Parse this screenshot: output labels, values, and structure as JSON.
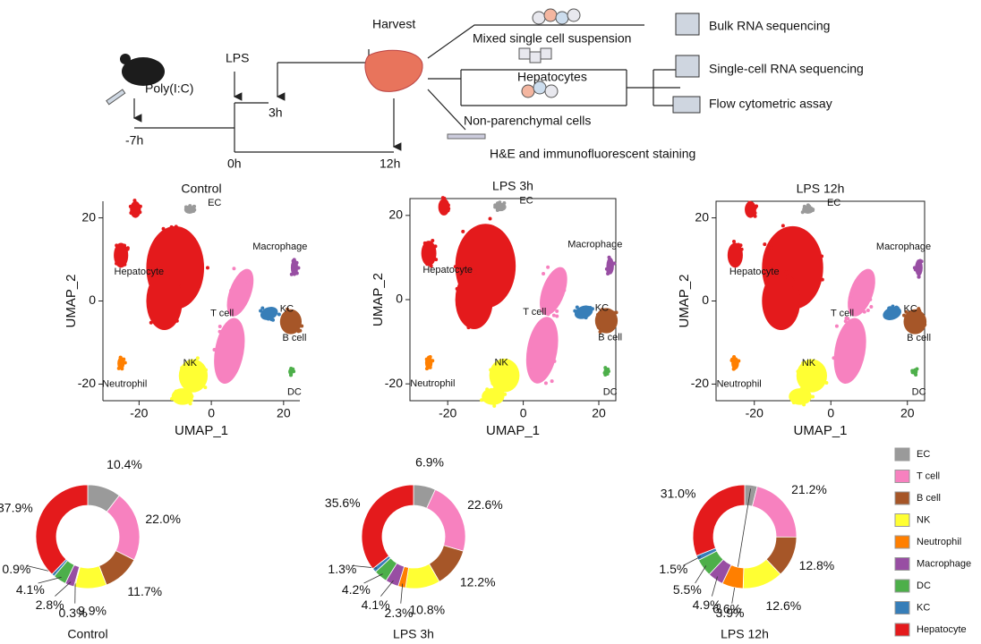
{
  "schematic": {
    "lps": "LPS",
    "polyic": "Poly(I:C)",
    "t_minus7": "-7h",
    "t0": "0h",
    "t3": "3h",
    "t12": "12h",
    "harvest": "Harvest",
    "mixed": "Mixed single cell suspension",
    "hepatocytes": "Hepatocytes",
    "npc": "Non-parenchymal cells",
    "staining": "H&E and immunofluorescent staining",
    "bulk": "Bulk RNA sequencing",
    "scrna": "Single-cell RNA sequencing",
    "flow": "Flow cytometric assay"
  },
  "cell_types": [
    {
      "name": "EC",
      "color": "#9a9a9a"
    },
    {
      "name": "T cell",
      "color": "#f781bf"
    },
    {
      "name": "B cell",
      "color": "#a65628"
    },
    {
      "name": "NK",
      "color": "#ffff33"
    },
    {
      "name": "Neutrophil",
      "color": "#ff7f00"
    },
    {
      "name": "Macrophage",
      "color": "#984ea3"
    },
    {
      "name": "DC",
      "color": "#4daf4a"
    },
    {
      "name": "KC",
      "color": "#377eb8"
    },
    {
      "name": "Hepatocyte",
      "color": "#e41a1c"
    }
  ],
  "umaps": [
    {
      "title": "Control",
      "xlabel": "UMAP_1",
      "ylabel": "UMAP_2",
      "xlim": [
        -30,
        24.5
      ],
      "ylim": [
        -24,
        24
      ],
      "xticks": [
        -20,
        0,
        20
      ],
      "yticks": [
        -20,
        0,
        20
      ],
      "frame": false
    },
    {
      "title": "LPS 3h",
      "xlabel": "UMAP_1",
      "ylabel": "UMAP_2",
      "xlim": [
        -30,
        24.5
      ],
      "ylim": [
        -24,
        24
      ],
      "xticks": [
        -20,
        0,
        20
      ],
      "yticks": [
        -20,
        0,
        20
      ],
      "frame": true
    },
    {
      "title": "LPS 12h",
      "xlabel": "UMAP_1",
      "ylabel": "UMAP_2",
      "xlim": [
        -30,
        24.5
      ],
      "ylim": [
        -24,
        24
      ],
      "xticks": [
        -20,
        0,
        20
      ],
      "yticks": [
        -20,
        0,
        20
      ],
      "frame": true
    }
  ],
  "chart_data": [
    {
      "type": "pie",
      "donut": true,
      "title": "Control",
      "values": [
        10.4,
        22.0,
        11.7,
        9.9,
        0.3,
        2.8,
        4.1,
        0.9,
        37.9
      ],
      "value_labels": [
        "10.4%",
        "22.0%",
        "11.7%",
        "9.9%",
        "0.3%",
        "2.8%",
        "4.1%",
        "0.9%",
        "37.9%"
      ]
    },
    {
      "type": "pie",
      "donut": true,
      "title": "LPS 3h",
      "values": [
        6.9,
        22.6,
        12.2,
        10.8,
        2.3,
        4.1,
        4.2,
        1.3,
        35.6
      ],
      "value_labels": [
        "6.9%",
        "22.6%",
        "12.2%",
        "10.8%",
        "2.3%",
        "4.1%",
        "4.2%",
        "1.3%",
        "35.6%"
      ]
    },
    {
      "type": "pie",
      "donut": true,
      "title": "LPS 12h",
      "values": [
        3.9,
        21.2,
        12.8,
        12.6,
        6.6,
        4.9,
        5.5,
        1.5,
        31.0
      ],
      "value_labels": [
        "3.9%",
        "21.2%",
        "12.8%",
        "12.6%",
        "6.6%",
        "4.9%",
        "5.5%",
        "1.5%",
        "31.0%"
      ]
    }
  ]
}
